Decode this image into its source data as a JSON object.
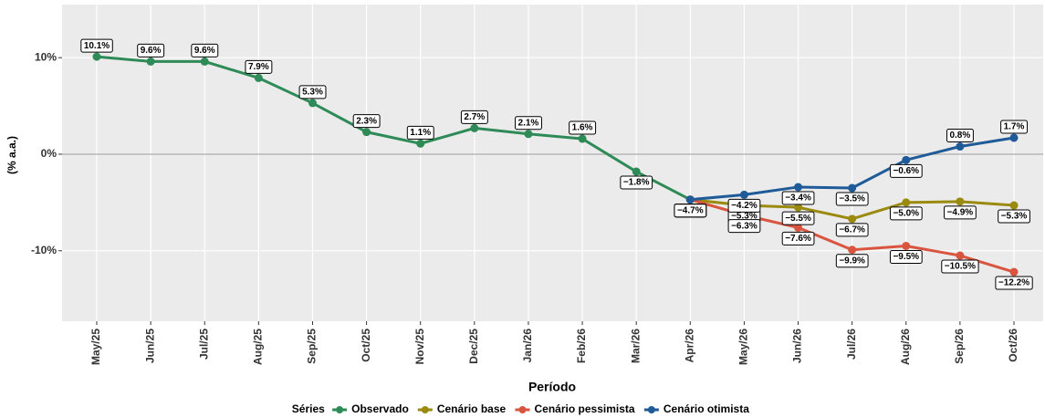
{
  "chart_data": {
    "type": "line",
    "categories": [
      "May/25",
      "Jun/25",
      "Jul/25",
      "Aug/25",
      "Sep/25",
      "Oct/25",
      "Nov/25",
      "Dec/25",
      "Jan/26",
      "Feb/26",
      "Mar/26",
      "Apr/26",
      "May/26",
      "Jun/26",
      "Jul/26",
      "Aug/26",
      "Sep/26",
      "Oct/26"
    ],
    "x_label": "Período",
    "y_label": "(% a.a.)",
    "legend_title": "Séries",
    "ylim": [
      -17.3,
      15.5
    ],
    "yticks": [
      {
        "value": -10,
        "label": "-10%"
      },
      {
        "value": 0,
        "label": "0%"
      },
      {
        "value": 10,
        "label": "10%"
      }
    ],
    "grid": true,
    "zero_line": true,
    "legend_position": "bottom",
    "series": [
      {
        "name": "Observado",
        "color": "#2e8b57",
        "values": [
          10.1,
          9.6,
          9.6,
          7.9,
          5.3,
          2.3,
          1.1,
          2.7,
          2.1,
          1.6,
          -1.8,
          -4.7,
          null,
          null,
          null,
          null,
          null,
          null
        ],
        "value_labels": [
          "10.1%",
          "9.6%",
          "9.6%",
          "7.9%",
          "5.3%",
          "2.3%",
          "1.1%",
          "2.7%",
          "2.1%",
          "1.6%",
          "−1.8%",
          "−4.7%",
          null,
          null,
          null,
          null,
          null,
          null
        ]
      },
      {
        "name": "Cenário base",
        "color": "#9a8a0e",
        "values": [
          null,
          null,
          null,
          null,
          null,
          null,
          null,
          null,
          null,
          null,
          null,
          -4.7,
          -5.3,
          -5.5,
          -6.7,
          -5.0,
          -4.9,
          -5.3
        ],
        "value_labels": [
          null,
          null,
          null,
          null,
          null,
          null,
          null,
          null,
          null,
          null,
          null,
          "−4.7%",
          "−5.3%",
          "−5.5%",
          "−6.7%",
          "−5.0%",
          "−4.9%",
          "−5.3%"
        ]
      },
      {
        "name": "Cenário pessimista",
        "color": "#d9553f",
        "values": [
          null,
          null,
          null,
          null,
          null,
          null,
          null,
          null,
          null,
          null,
          null,
          -4.7,
          -6.3,
          -7.6,
          -9.9,
          -9.5,
          -10.5,
          -12.2
        ],
        "value_labels": [
          null,
          null,
          null,
          null,
          null,
          null,
          null,
          null,
          null,
          null,
          null,
          "−4.7%",
          "−6.3%",
          "−7.6%",
          "−9.9%",
          "−9.5%",
          "−10.5%",
          "−12.2%"
        ]
      },
      {
        "name": "Cenário otimista",
        "color": "#1f5b99",
        "values": [
          null,
          null,
          null,
          null,
          null,
          null,
          null,
          null,
          null,
          null,
          null,
          -4.7,
          -4.2,
          -3.4,
          -3.5,
          -0.6,
          0.8,
          1.7
        ],
        "value_labels": [
          null,
          null,
          null,
          null,
          null,
          null,
          null,
          null,
          null,
          null,
          null,
          "−4.7%",
          "−4.2%",
          "−3.4%",
          "−3.5%",
          "−0.6%",
          "0.8%",
          "1.7%"
        ]
      }
    ]
  }
}
